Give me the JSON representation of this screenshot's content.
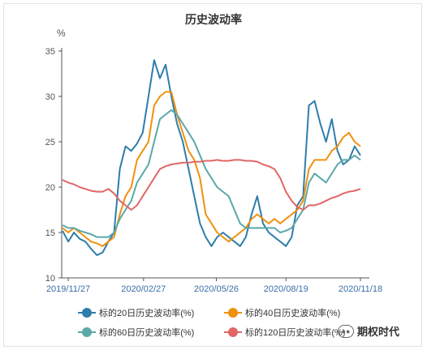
{
  "chart_data": {
    "type": "line",
    "title": "历史波动率",
    "ylabel": "%",
    "ylim": [
      10,
      35
    ],
    "yticks": [
      10,
      15,
      20,
      25,
      30,
      35
    ],
    "x_range": [
      "2019-11-19",
      "2020-11-21"
    ],
    "xtick_labels": [
      "2019/11/27",
      "2020/02/27",
      "2020/05/26",
      "2020/08/19",
      "2020/11/18"
    ],
    "xtick_dates": [
      "2019-11-27",
      "2020-02-27",
      "2020-05-26",
      "2020-08-19",
      "2020-11-18"
    ],
    "grid": false,
    "legend_position": "bottom",
    "series": [
      {
        "name": "标的20日历史波动率(%)",
        "color": "#2e7dab",
        "points": [
          [
            "2019-11-20",
            15.2
          ],
          [
            "2019-11-27",
            14.0
          ],
          [
            "2019-12-04",
            15.0
          ],
          [
            "2019-12-11",
            14.3
          ],
          [
            "2019-12-18",
            14.0
          ],
          [
            "2019-12-25",
            13.2
          ],
          [
            "2020-01-01",
            12.5
          ],
          [
            "2020-01-08",
            12.8
          ],
          [
            "2020-01-15",
            14.0
          ],
          [
            "2020-01-22",
            15.0
          ],
          [
            "2020-01-29",
            22.0
          ],
          [
            "2020-02-05",
            24.5
          ],
          [
            "2020-02-12",
            24.0
          ],
          [
            "2020-02-19",
            24.8
          ],
          [
            "2020-02-26",
            26.0
          ],
          [
            "2020-03-04",
            30.0
          ],
          [
            "2020-03-11",
            34.0
          ],
          [
            "2020-03-18",
            32.0
          ],
          [
            "2020-03-25",
            33.5
          ],
          [
            "2020-04-01",
            30.0
          ],
          [
            "2020-04-08",
            27.0
          ],
          [
            "2020-04-15",
            25.0
          ],
          [
            "2020-04-22",
            22.0
          ],
          [
            "2020-04-29",
            19.0
          ],
          [
            "2020-05-06",
            16.0
          ],
          [
            "2020-05-13",
            14.5
          ],
          [
            "2020-05-20",
            13.5
          ],
          [
            "2020-05-27",
            14.5
          ],
          [
            "2020-06-03",
            15.0
          ],
          [
            "2020-06-10",
            14.5
          ],
          [
            "2020-06-17",
            14.0
          ],
          [
            "2020-06-24",
            13.5
          ],
          [
            "2020-07-01",
            14.5
          ],
          [
            "2020-07-08",
            17.0
          ],
          [
            "2020-07-15",
            19.0
          ],
          [
            "2020-07-22",
            16.0
          ],
          [
            "2020-07-29",
            15.0
          ],
          [
            "2020-08-05",
            14.5
          ],
          [
            "2020-08-12",
            14.0
          ],
          [
            "2020-08-19",
            13.5
          ],
          [
            "2020-08-26",
            14.5
          ],
          [
            "2020-09-02",
            18.0
          ],
          [
            "2020-09-09",
            19.0
          ],
          [
            "2020-09-16",
            29.0
          ],
          [
            "2020-09-23",
            29.5
          ],
          [
            "2020-09-30",
            27.0
          ],
          [
            "2020-10-07",
            25.0
          ],
          [
            "2020-10-14",
            27.5
          ],
          [
            "2020-10-21",
            24.0
          ],
          [
            "2020-10-28",
            22.5
          ],
          [
            "2020-11-04",
            23.0
          ],
          [
            "2020-11-11",
            24.5
          ],
          [
            "2020-11-18",
            23.5
          ]
        ]
      },
      {
        "name": "标的40日历史波动率(%)",
        "color": "#f0900e",
        "points": [
          [
            "2019-11-20",
            15.5
          ],
          [
            "2019-11-27",
            15.0
          ],
          [
            "2019-12-04",
            15.5
          ],
          [
            "2019-12-11",
            15.0
          ],
          [
            "2019-12-18",
            14.5
          ],
          [
            "2019-12-25",
            14.0
          ],
          [
            "2020-01-01",
            13.8
          ],
          [
            "2020-01-08",
            13.5
          ],
          [
            "2020-01-15",
            14.0
          ],
          [
            "2020-01-22",
            14.5
          ],
          [
            "2020-01-29",
            17.0
          ],
          [
            "2020-02-05",
            19.0
          ],
          [
            "2020-02-12",
            20.0
          ],
          [
            "2020-02-19",
            23.0
          ],
          [
            "2020-02-26",
            24.0
          ],
          [
            "2020-03-04",
            25.0
          ],
          [
            "2020-03-11",
            29.0
          ],
          [
            "2020-03-18",
            30.0
          ],
          [
            "2020-03-25",
            30.5
          ],
          [
            "2020-04-01",
            30.5
          ],
          [
            "2020-04-08",
            28.0
          ],
          [
            "2020-04-15",
            26.0
          ],
          [
            "2020-04-22",
            24.0
          ],
          [
            "2020-04-29",
            23.0
          ],
          [
            "2020-05-06",
            21.0
          ],
          [
            "2020-05-13",
            17.0
          ],
          [
            "2020-05-20",
            16.0
          ],
          [
            "2020-05-27",
            15.0
          ],
          [
            "2020-06-03",
            14.5
          ],
          [
            "2020-06-10",
            14.0
          ],
          [
            "2020-06-17",
            14.5
          ],
          [
            "2020-06-24",
            15.0
          ],
          [
            "2020-07-01",
            15.5
          ],
          [
            "2020-07-08",
            16.5
          ],
          [
            "2020-07-15",
            17.0
          ],
          [
            "2020-07-22",
            16.5
          ],
          [
            "2020-07-29",
            16.0
          ],
          [
            "2020-08-05",
            16.5
          ],
          [
            "2020-08-12",
            16.0
          ],
          [
            "2020-08-19",
            16.5
          ],
          [
            "2020-08-26",
            17.0
          ],
          [
            "2020-09-02",
            17.5
          ],
          [
            "2020-09-09",
            18.5
          ],
          [
            "2020-09-16",
            22.0
          ],
          [
            "2020-09-23",
            23.0
          ],
          [
            "2020-09-30",
            23.0
          ],
          [
            "2020-10-07",
            23.0
          ],
          [
            "2020-10-14",
            24.0
          ],
          [
            "2020-10-21",
            24.5
          ],
          [
            "2020-10-28",
            25.5
          ],
          [
            "2020-11-04",
            26.0
          ],
          [
            "2020-11-11",
            25.0
          ],
          [
            "2020-11-18",
            24.5
          ]
        ]
      },
      {
        "name": "标的60日历史波动率(%)",
        "color": "#5ba8a8",
        "points": [
          [
            "2019-11-20",
            15.8
          ],
          [
            "2019-11-27",
            15.5
          ],
          [
            "2019-12-04",
            15.5
          ],
          [
            "2019-12-11",
            15.2
          ],
          [
            "2019-12-18",
            15.0
          ],
          [
            "2019-12-25",
            14.8
          ],
          [
            "2020-01-01",
            14.5
          ],
          [
            "2020-01-08",
            14.5
          ],
          [
            "2020-01-15",
            14.5
          ],
          [
            "2020-01-22",
            15.0
          ],
          [
            "2020-01-29",
            16.5
          ],
          [
            "2020-02-05",
            17.5
          ],
          [
            "2020-02-12",
            18.5
          ],
          [
            "2020-02-19",
            20.5
          ],
          [
            "2020-02-26",
            21.5
          ],
          [
            "2020-03-04",
            22.5
          ],
          [
            "2020-03-11",
            25.0
          ],
          [
            "2020-03-18",
            27.5
          ],
          [
            "2020-03-25",
            28.0
          ],
          [
            "2020-04-01",
            28.5
          ],
          [
            "2020-04-08",
            28.0
          ],
          [
            "2020-04-15",
            27.0
          ],
          [
            "2020-04-22",
            26.0
          ],
          [
            "2020-04-29",
            25.0
          ],
          [
            "2020-05-06",
            23.5
          ],
          [
            "2020-05-13",
            22.0
          ],
          [
            "2020-05-20",
            21.0
          ],
          [
            "2020-05-27",
            20.0
          ],
          [
            "2020-06-03",
            19.5
          ],
          [
            "2020-06-10",
            19.0
          ],
          [
            "2020-06-17",
            17.5
          ],
          [
            "2020-06-24",
            16.0
          ],
          [
            "2020-07-01",
            15.5
          ],
          [
            "2020-07-08",
            15.5
          ],
          [
            "2020-07-15",
            15.5
          ],
          [
            "2020-07-22",
            15.5
          ],
          [
            "2020-07-29",
            15.5
          ],
          [
            "2020-08-05",
            15.5
          ],
          [
            "2020-08-12",
            15.0
          ],
          [
            "2020-08-19",
            15.2
          ],
          [
            "2020-08-26",
            15.5
          ],
          [
            "2020-09-02",
            16.5
          ],
          [
            "2020-09-09",
            17.5
          ],
          [
            "2020-09-16",
            20.5
          ],
          [
            "2020-09-23",
            21.5
          ],
          [
            "2020-09-30",
            21.0
          ],
          [
            "2020-10-07",
            20.5
          ],
          [
            "2020-10-14",
            21.5
          ],
          [
            "2020-10-21",
            22.5
          ],
          [
            "2020-10-28",
            23.0
          ],
          [
            "2020-11-04",
            23.0
          ],
          [
            "2020-11-11",
            23.5
          ],
          [
            "2020-11-18",
            23.0
          ]
        ]
      },
      {
        "name": "标的120日历史波动率(%)",
        "color": "#e06666",
        "points": [
          [
            "2019-11-20",
            20.8
          ],
          [
            "2019-11-27",
            20.5
          ],
          [
            "2019-12-04",
            20.3
          ],
          [
            "2019-12-11",
            20.0
          ],
          [
            "2019-12-18",
            19.8
          ],
          [
            "2019-12-25",
            19.6
          ],
          [
            "2020-01-01",
            19.5
          ],
          [
            "2020-01-08",
            19.5
          ],
          [
            "2020-01-15",
            19.8
          ],
          [
            "2020-01-22",
            19.3
          ],
          [
            "2020-01-29",
            18.5
          ],
          [
            "2020-02-05",
            18.0
          ],
          [
            "2020-02-12",
            17.5
          ],
          [
            "2020-02-19",
            18.0
          ],
          [
            "2020-02-26",
            19.0
          ],
          [
            "2020-03-04",
            20.0
          ],
          [
            "2020-03-11",
            21.0
          ],
          [
            "2020-03-18",
            22.0
          ],
          [
            "2020-03-25",
            22.3
          ],
          [
            "2020-04-01",
            22.5
          ],
          [
            "2020-04-08",
            22.6
          ],
          [
            "2020-04-15",
            22.7
          ],
          [
            "2020-04-22",
            22.7
          ],
          [
            "2020-04-29",
            22.8
          ],
          [
            "2020-05-06",
            22.8
          ],
          [
            "2020-05-13",
            22.9
          ],
          [
            "2020-05-20",
            22.9
          ],
          [
            "2020-05-27",
            23.0
          ],
          [
            "2020-06-03",
            22.9
          ],
          [
            "2020-06-10",
            22.9
          ],
          [
            "2020-06-17",
            23.0
          ],
          [
            "2020-06-24",
            23.0
          ],
          [
            "2020-07-01",
            22.9
          ],
          [
            "2020-07-08",
            22.9
          ],
          [
            "2020-07-15",
            22.8
          ],
          [
            "2020-07-22",
            22.5
          ],
          [
            "2020-07-29",
            22.3
          ],
          [
            "2020-08-05",
            22.0
          ],
          [
            "2020-08-12",
            21.0
          ],
          [
            "2020-08-19",
            19.5
          ],
          [
            "2020-08-26",
            18.5
          ],
          [
            "2020-09-02",
            17.8
          ],
          [
            "2020-09-09",
            17.5
          ],
          [
            "2020-09-16",
            18.0
          ],
          [
            "2020-09-23",
            18.0
          ],
          [
            "2020-09-30",
            18.2
          ],
          [
            "2020-10-07",
            18.5
          ],
          [
            "2020-10-14",
            18.8
          ],
          [
            "2020-10-21",
            19.0
          ],
          [
            "2020-10-28",
            19.3
          ],
          [
            "2020-11-04",
            19.5
          ],
          [
            "2020-11-11",
            19.6
          ],
          [
            "2020-11-18",
            19.8
          ]
        ]
      }
    ]
  },
  "watermark": {
    "text": "期权时代",
    "icon": "wechat-icon"
  }
}
